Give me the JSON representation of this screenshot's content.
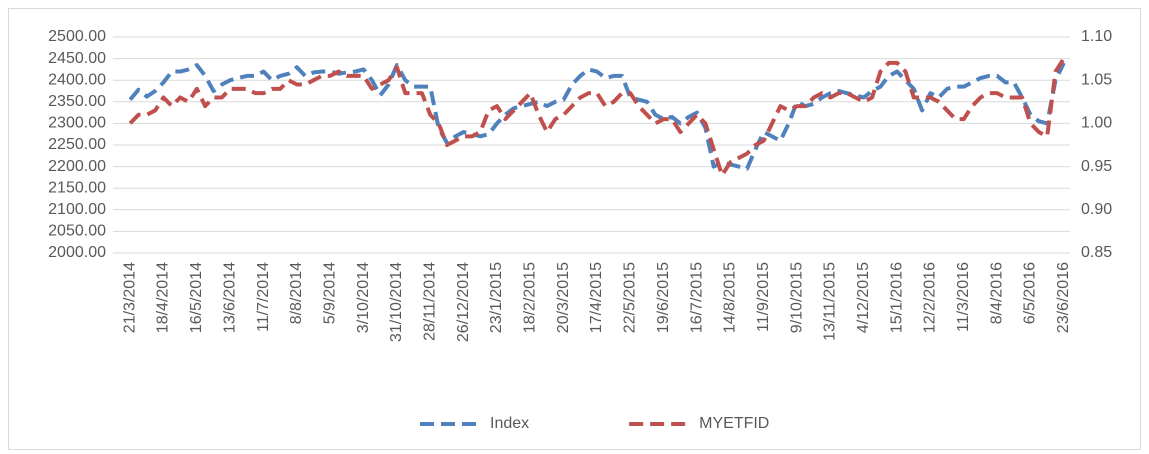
{
  "chart_data": {
    "type": "line",
    "categories": [
      "21/3/2014",
      null,
      null,
      null,
      "18/4/2014",
      null,
      null,
      null,
      "16/5/2014",
      null,
      null,
      null,
      "13/6/2014",
      null,
      null,
      null,
      "11/7/2014",
      null,
      null,
      null,
      "8/8/2014",
      null,
      null,
      null,
      "5/9/2014",
      null,
      null,
      null,
      "3/10/2014",
      null,
      null,
      null,
      "31/10/2014",
      null,
      null,
      null,
      "28/11/2014",
      null,
      null,
      null,
      "26/12/2014",
      null,
      null,
      null,
      "23/1/2015",
      null,
      null,
      null,
      "18/2/2015",
      null,
      null,
      null,
      "20/3/2015",
      null,
      null,
      null,
      "17/4/2015",
      null,
      null,
      null,
      "22/5/2015",
      null,
      null,
      null,
      "19/6/2015",
      null,
      null,
      null,
      "16/7/2015",
      null,
      null,
      null,
      "14/8/2015",
      null,
      null,
      null,
      "11/9/2015",
      null,
      null,
      null,
      "9/10/2015",
      null,
      null,
      null,
      "13/11/2015",
      null,
      null,
      null,
      "4/12/2015",
      null,
      null,
      null,
      "15/1/2016",
      null,
      null,
      null,
      "12/2/2016",
      null,
      null,
      null,
      "11/3/2016",
      null,
      null,
      null,
      "8/4/2016",
      null,
      null,
      null,
      "6/5/2016",
      null,
      null,
      null,
      "23/6/2016"
    ],
    "series": [
      {
        "name": "Index",
        "color": "#4f81bd",
        "values": [
          2355,
          2378,
          2362,
          2375,
          2395,
          2420,
          2420,
          2425,
          2435,
          2410,
          2375,
          2390,
          2400,
          2405,
          2410,
          2410,
          2420,
          2400,
          2410,
          2415,
          2430,
          2410,
          2418,
          2420,
          2420,
          2415,
          2418,
          2420,
          2425,
          2400,
          2365,
          2390,
          2435,
          2400,
          2385,
          2385,
          2385,
          2290,
          2255,
          2270,
          2280,
          2275,
          2270,
          2275,
          2300,
          2320,
          2335,
          2340,
          2345,
          2350,
          2340,
          2350,
          2355,
          2390,
          2410,
          2425,
          2420,
          2405,
          2410,
          2410,
          2360,
          2355,
          2350,
          2320,
          2310,
          2315,
          2300,
          2315,
          2325,
          2290,
          2200,
          2210,
          2205,
          2200,
          2195,
          2240,
          2280,
          2270,
          2260,
          2300,
          2350,
          2340,
          2345,
          2360,
          2370,
          2375,
          2370,
          2365,
          2360,
          2375,
          2385,
          2410,
          2420,
          2400,
          2380,
          2330,
          2370,
          2360,
          2380,
          2385,
          2385,
          2395,
          2405,
          2410,
          2410,
          2395,
          2395,
          2360,
          2320,
          2305,
          2300,
          2400,
          2440
        ]
      },
      {
        "name": "MYETFID",
        "color": "#c0504d",
        "axis": "y2",
        "values": [
          1.0,
          1.01,
          1.01,
          1.015,
          1.03,
          1.02,
          1.03,
          1.025,
          1.04,
          1.02,
          1.03,
          1.03,
          1.04,
          1.04,
          1.04,
          1.035,
          1.035,
          1.04,
          1.04,
          1.05,
          1.045,
          1.045,
          1.05,
          1.055,
          1.055,
          1.06,
          1.055,
          1.055,
          1.055,
          1.04,
          1.045,
          1.05,
          1.065,
          1.035,
          1.035,
          1.035,
          1.01,
          1.0,
          0.975,
          0.98,
          0.985,
          0.985,
          0.99,
          1.015,
          1.02,
          1.005,
          1.015,
          1.025,
          1.035,
          1.01,
          0.99,
          1.005,
          1.01,
          1.02,
          1.03,
          1.035,
          1.035,
          1.02,
          1.025,
          1.035,
          1.035,
          1.02,
          1.01,
          1.0,
          1.005,
          1.005,
          0.99,
          1.0,
          1.01,
          1.0,
          0.97,
          0.94,
          0.955,
          0.96,
          0.965,
          0.975,
          0.98,
          1.0,
          1.02,
          1.015,
          1.02,
          1.02,
          1.03,
          1.035,
          1.03,
          1.035,
          1.035,
          1.03,
          1.025,
          1.03,
          1.06,
          1.07,
          1.07,
          1.06,
          1.03,
          1.03,
          1.03,
          1.025,
          1.015,
          1.005,
          1.005,
          1.02,
          1.03,
          1.035,
          1.035,
          1.03,
          1.03,
          1.03,
          1.0,
          0.99,
          0.985,
          1.06,
          1.075
        ]
      }
    ],
    "ylim": [
      2000,
      2500
    ],
    "yticks": [
      {
        "value": 2000,
        "label": "2000.00"
      },
      {
        "value": 2050,
        "label": "2050.00"
      },
      {
        "value": 2100,
        "label": "2100.00"
      },
      {
        "value": 2150,
        "label": "2150.00"
      },
      {
        "value": 2200,
        "label": "2200.00"
      },
      {
        "value": 2250,
        "label": "2250.00"
      },
      {
        "value": 2300,
        "label": "2300.00"
      },
      {
        "value": 2350,
        "label": "2350.00"
      },
      {
        "value": 2400,
        "label": "2400.00"
      },
      {
        "value": 2450,
        "label": "2450.00"
      },
      {
        "value": 2500,
        "label": "2500.00"
      }
    ],
    "y2lim": [
      0.85,
      1.1
    ],
    "y2ticks": [
      0.85,
      {
        "value": 0.9,
        "label": "0.90"
      },
      0.95,
      {
        "value": 1.0,
        "label": "1.00"
      },
      {
        "value": 1.05,
        "label": "1.05"
      },
      {
        "value": 1.1,
        "label": "1.10"
      }
    ],
    "grid": true,
    "legend": "bottom"
  }
}
